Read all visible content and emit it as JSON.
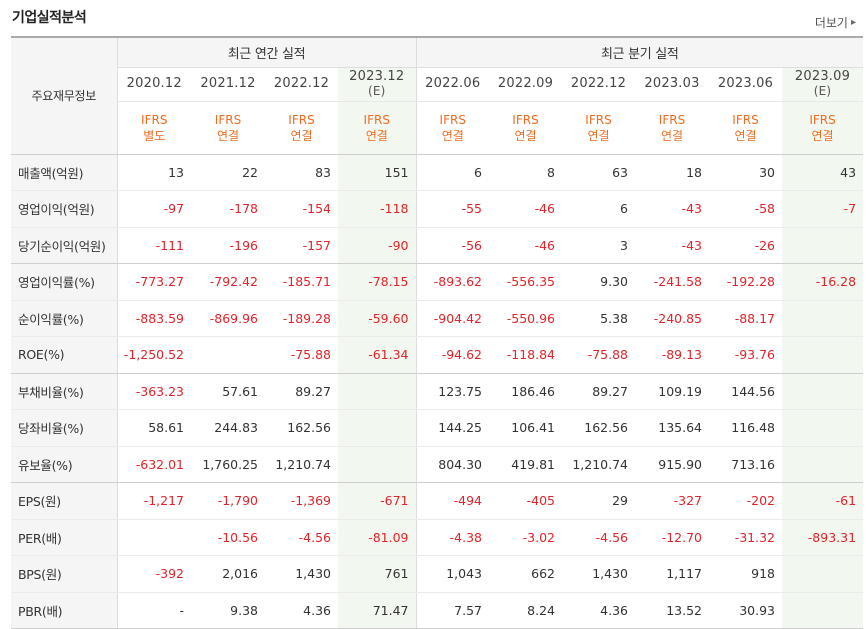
{
  "section_title": "기업실적분석",
  "more_label": "더보기",
  "more_icon": "chevron-right",
  "table": {
    "label_header": "주요재무정보",
    "group_annual": "최근 연간 실적",
    "group_quarterly": "최근 분기 실적",
    "periods": [
      {
        "date": "2020.12",
        "est": "",
        "type1": "IFRS",
        "type2": "별도"
      },
      {
        "date": "2021.12",
        "est": "",
        "type1": "IFRS",
        "type2": "연결"
      },
      {
        "date": "2022.12",
        "est": "",
        "type1": "IFRS",
        "type2": "연결"
      },
      {
        "date": "2023.12",
        "est": "(E)",
        "type1": "IFRS",
        "type2": "연결"
      },
      {
        "date": "2022.06",
        "est": "",
        "type1": "IFRS",
        "type2": "연결"
      },
      {
        "date": "2022.09",
        "est": "",
        "type1": "IFRS",
        "type2": "연결"
      },
      {
        "date": "2022.12",
        "est": "",
        "type1": "IFRS",
        "type2": "연결"
      },
      {
        "date": "2023.03",
        "est": "",
        "type1": "IFRS",
        "type2": "연결"
      },
      {
        "date": "2023.06",
        "est": "",
        "type1": "IFRS",
        "type2": "연결"
      },
      {
        "date": "2023.09",
        "est": "(E)",
        "type1": "IFRS",
        "type2": "연결"
      }
    ],
    "rows": [
      {
        "label": "매출액(억원)",
        "values": [
          "13",
          "22",
          "83",
          "151",
          "6",
          "8",
          "63",
          "18",
          "30",
          "43"
        ]
      },
      {
        "label": "영업이익(억원)",
        "values": [
          "-97",
          "-178",
          "-154",
          "-118",
          "-55",
          "-46",
          "6",
          "-43",
          "-58",
          "-7"
        ]
      },
      {
        "label": "당기순이익(억원)",
        "values": [
          "-111",
          "-196",
          "-157",
          "-90",
          "-56",
          "-46",
          "3",
          "-43",
          "-26",
          ""
        ]
      },
      {
        "label": "영업이익률(%)",
        "values": [
          "-773.27",
          "-792.42",
          "-185.71",
          "-78.15",
          "-893.62",
          "-556.35",
          "9.30",
          "-241.58",
          "-192.28",
          "-16.28"
        ]
      },
      {
        "label": "순이익률(%)",
        "values": [
          "-883.59",
          "-869.96",
          "-189.28",
          "-59.60",
          "-904.42",
          "-550.96",
          "5.38",
          "-240.85",
          "-88.17",
          ""
        ]
      },
      {
        "label": "ROE(%)",
        "values": [
          "-1,250.52",
          "",
          "-75.88",
          "-61.34",
          "-94.62",
          "-118.84",
          "-75.88",
          "-89.13",
          "-93.76",
          ""
        ]
      },
      {
        "label": "부채비율(%)",
        "values": [
          "-363.23",
          "57.61",
          "89.27",
          "",
          "123.75",
          "186.46",
          "89.27",
          "109.19",
          "144.56",
          ""
        ]
      },
      {
        "label": "당좌비율(%)",
        "values": [
          "58.61",
          "244.83",
          "162.56",
          "",
          "144.25",
          "106.41",
          "162.56",
          "135.64",
          "116.48",
          ""
        ]
      },
      {
        "label": "유보율(%)",
        "values": [
          "-632.01",
          "1,760.25",
          "1,210.74",
          "",
          "804.30",
          "419.81",
          "1,210.74",
          "915.90",
          "713.16",
          ""
        ]
      },
      {
        "label": "EPS(원)",
        "values": [
          "-1,217",
          "-1,790",
          "-1,369",
          "-671",
          "-494",
          "-405",
          "29",
          "-327",
          "-202",
          "-61"
        ]
      },
      {
        "label": "PER(배)",
        "values": [
          "",
          "-10.56",
          "-4.56",
          "-81.09",
          "-4.38",
          "-3.02",
          "-4.56",
          "-12.70",
          "-31.32",
          "-893.31"
        ]
      },
      {
        "label": "BPS(원)",
        "values": [
          "-392",
          "2,016",
          "1,430",
          "761",
          "1,043",
          "662",
          "1,430",
          "1,117",
          "918",
          ""
        ]
      },
      {
        "label": "PBR(배)",
        "values": [
          "-",
          "9.38",
          "4.36",
          "71.47",
          "7.57",
          "8.24",
          "4.36",
          "13.52",
          "30.93",
          ""
        ]
      }
    ]
  },
  "colors": {
    "negative": "#e2232a",
    "type_label": "#ef6c21",
    "estimate_bg": "#f2f8ef",
    "header_bg": "#f5f5f5"
  }
}
